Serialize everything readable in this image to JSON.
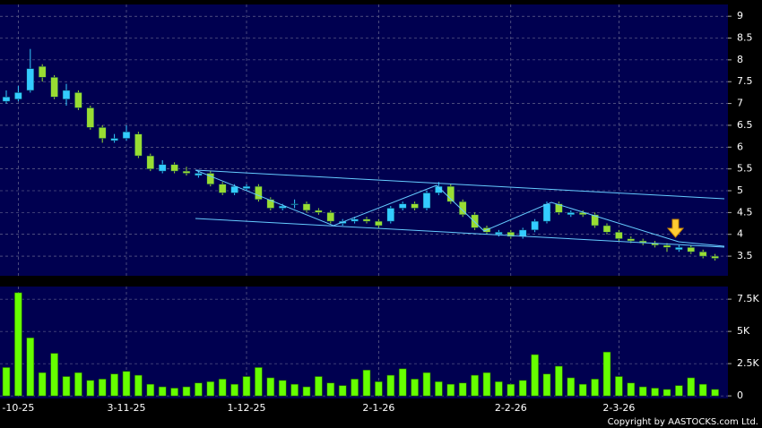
{
  "chart_data": [
    {
      "type": "candlestick",
      "categories": [
        null,
        "-10-25",
        null,
        null,
        null,
        null,
        null,
        null,
        null,
        null,
        "3-11-25",
        null,
        null,
        null,
        null,
        null,
        null,
        null,
        null,
        null,
        "1-12-25",
        null,
        null,
        null,
        null,
        null,
        null,
        null,
        null,
        null,
        null,
        "2-1-26",
        null,
        null,
        null,
        null,
        null,
        null,
        null,
        null,
        null,
        null,
        "2-2-26",
        null,
        null,
        null,
        null,
        null,
        null,
        null,
        null,
        "2-3-26",
        null,
        null,
        null,
        null,
        null,
        null,
        null,
        null
      ],
      "open": [
        7.05,
        7.1,
        7.3,
        7.85,
        7.6,
        7.1,
        7.25,
        6.9,
        6.45,
        6.15,
        6.2,
        6.3,
        5.8,
        5.45,
        5.6,
        5.45,
        5.35,
        5.4,
        5.15,
        4.95,
        5.05,
        5.1,
        4.8,
        4.6,
        4.7,
        4.7,
        4.55,
        4.5,
        4.25,
        4.3,
        4.35,
        4.3,
        4.3,
        4.6,
        4.7,
        4.6,
        4.95,
        5.1,
        4.75,
        4.45,
        4.15,
        4.0,
        4.05,
        3.95,
        4.1,
        4.3,
        4.7,
        4.45,
        4.5,
        4.45,
        4.2,
        4.05,
        3.9,
        3.85,
        3.8,
        3.75,
        3.65,
        3.7,
        3.6,
        3.5
      ],
      "high": [
        7.3,
        7.4,
        8.25,
        7.9,
        7.65,
        7.45,
        7.3,
        6.95,
        6.5,
        6.3,
        6.5,
        6.35,
        5.85,
        5.7,
        5.65,
        5.55,
        5.45,
        5.45,
        5.2,
        5.15,
        5.15,
        5.15,
        4.85,
        4.7,
        4.8,
        4.75,
        4.6,
        4.55,
        4.35,
        4.4,
        4.4,
        4.35,
        4.65,
        4.75,
        4.75,
        5.0,
        5.2,
        5.15,
        4.8,
        4.5,
        4.2,
        4.1,
        4.1,
        4.15,
        4.35,
        4.75,
        4.75,
        4.55,
        4.55,
        4.5,
        4.25,
        4.1,
        3.95,
        3.9,
        3.85,
        3.8,
        3.75,
        3.75,
        3.65,
        3.55
      ],
      "low": [
        7.0,
        7.05,
        7.25,
        7.5,
        7.1,
        6.95,
        6.85,
        6.4,
        6.1,
        6.1,
        6.15,
        5.75,
        5.45,
        5.4,
        5.4,
        5.35,
        5.3,
        5.1,
        4.9,
        4.9,
        5.0,
        4.75,
        4.55,
        4.55,
        4.6,
        4.5,
        4.45,
        4.25,
        4.2,
        4.25,
        4.25,
        4.15,
        4.25,
        4.55,
        4.55,
        4.55,
        4.9,
        4.7,
        4.4,
        4.1,
        4.0,
        3.95,
        3.9,
        3.9,
        4.05,
        4.25,
        4.45,
        4.4,
        4.4,
        4.15,
        4.0,
        3.85,
        3.8,
        3.75,
        3.7,
        3.6,
        3.6,
        3.55,
        3.45,
        3.4
      ],
      "close": [
        7.15,
        7.25,
        7.8,
        7.6,
        7.15,
        7.3,
        6.9,
        6.45,
        6.2,
        6.2,
        6.35,
        5.8,
        5.5,
        5.6,
        5.45,
        5.4,
        5.4,
        5.15,
        4.95,
        5.1,
        5.1,
        4.8,
        4.6,
        4.65,
        4.7,
        4.55,
        4.5,
        4.3,
        4.3,
        4.35,
        4.3,
        4.2,
        4.6,
        4.7,
        4.6,
        4.95,
        5.1,
        4.75,
        4.45,
        4.15,
        4.05,
        4.05,
        3.95,
        4.1,
        4.3,
        4.7,
        4.5,
        4.5,
        4.45,
        4.2,
        4.05,
        3.9,
        3.85,
        3.8,
        3.75,
        3.7,
        3.7,
        3.6,
        3.5,
        3.45
      ],
      "up_color": "#33ccff",
      "down_color": "#99dd33",
      "ylim": [
        3.05,
        9.27
      ],
      "yticks": [
        9,
        8.5,
        8,
        7.5,
        7,
        6.5,
        6,
        5.5,
        5,
        4.5,
        4,
        3.5
      ],
      "grid": true
    },
    {
      "type": "bar",
      "values": [
        2200,
        8000,
        4500,
        1800,
        3300,
        1500,
        1800,
        1200,
        1300,
        1700,
        1900,
        1600,
        900,
        700,
        600,
        700,
        1000,
        1100,
        1300,
        900,
        1500,
        2200,
        1400,
        1200,
        900,
        700,
        1500,
        1000,
        800,
        1300,
        2000,
        1100,
        1600,
        2100,
        1300,
        1800,
        1100,
        900,
        1000,
        1600,
        1800,
        1100,
        900,
        1200,
        3200,
        1700,
        2300,
        1400,
        900,
        1300,
        3400,
        1500,
        1000,
        700,
        600,
        500,
        800,
        1400,
        900,
        500
      ],
      "color": "#66ff00",
      "ylim": [
        -200,
        8480
      ],
      "yticks": [
        0,
        {
          "value": 2500,
          "label": "2.5K"
        },
        {
          "value": 5000,
          "label": "5K"
        },
        {
          "value": 7500,
          "label": "7.5K"
        }
      ],
      "grid": true
    }
  ],
  "footer": "Copyright by AASTOCKS.com Ltd."
}
